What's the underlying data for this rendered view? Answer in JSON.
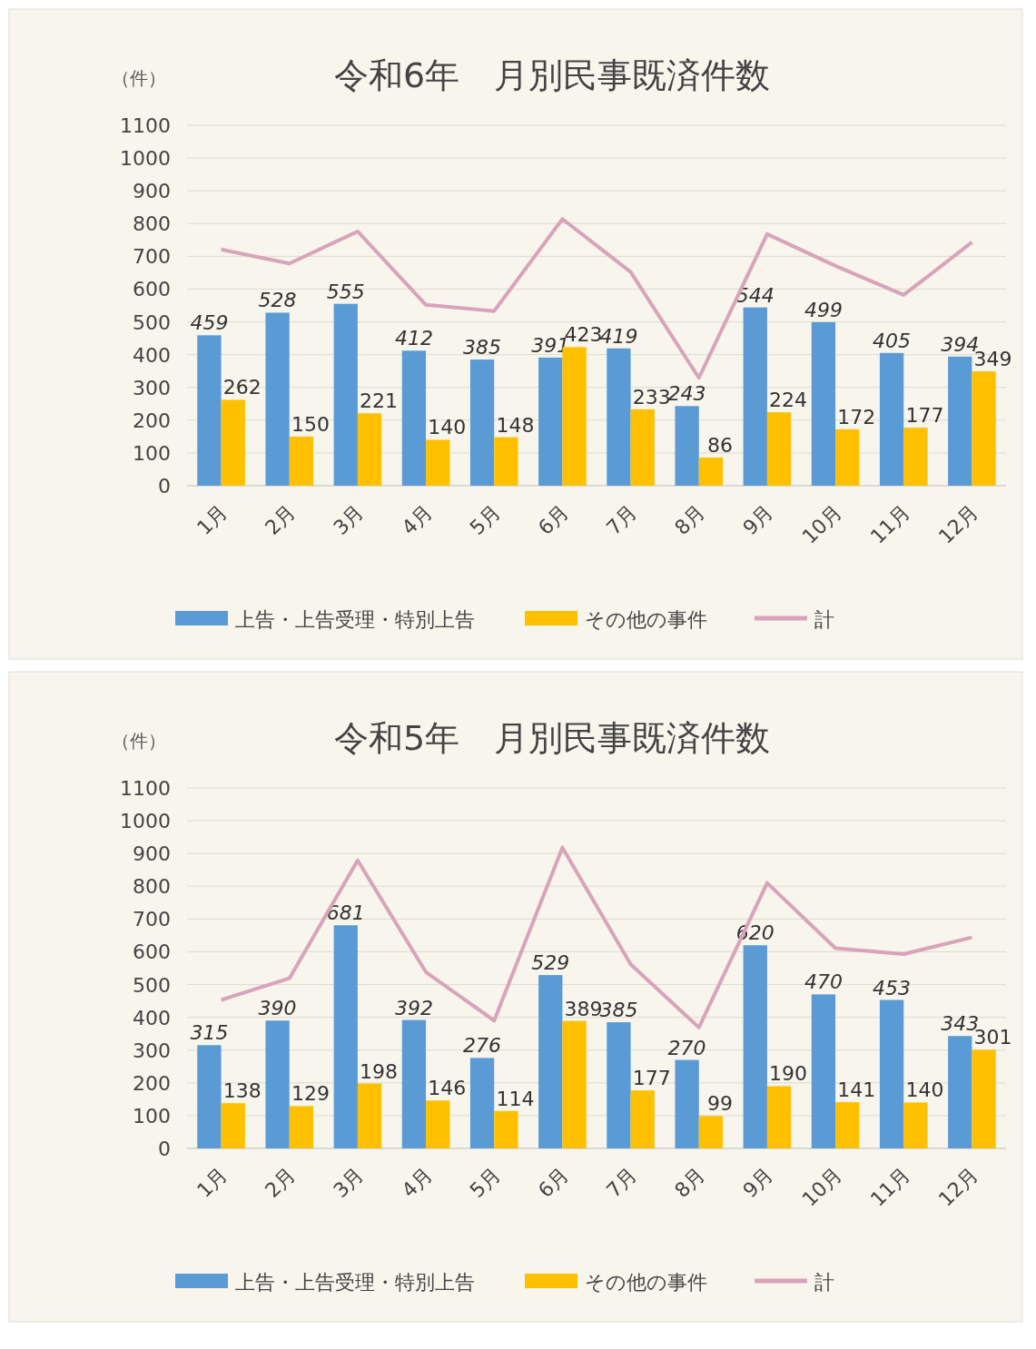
{
  "chart_data": [
    {
      "type": "bar",
      "title": "令和6年　月別民事既済件数",
      "ylabel": "（件）",
      "categories": [
        "1月",
        "2月",
        "3月",
        "4月",
        "5月",
        "6月",
        "7月",
        "8月",
        "9月",
        "10月",
        "11月",
        "12月"
      ],
      "ylim": [
        0,
        1100
      ],
      "yticks": [
        0,
        100,
        200,
        300,
        400,
        500,
        600,
        700,
        800,
        900,
        1000,
        1100
      ],
      "grid": "y",
      "legend": "bottom",
      "series": [
        {
          "name": "上告・上告受理・特別上告",
          "color": "#5b9bd5",
          "values": [
            459,
            528,
            555,
            412,
            385,
            391,
            419,
            243,
            544,
            499,
            405,
            394
          ],
          "value_labels": [
            "459",
            "528",
            "555",
            "412",
            "385",
            "391",
            "419",
            "243",
            "544",
            "499",
            "405",
            "394"
          ]
        },
        {
          "name": "その他の事件",
          "color": "#ffc000",
          "values": [
            262,
            150,
            221,
            140,
            148,
            423,
            233,
            86,
            224,
            172,
            177,
            349
          ],
          "value_labels": [
            "262",
            "150",
            "221",
            "140",
            "148",
            "423",
            "233",
            "86",
            "224",
            "172",
            "177",
            "349"
          ]
        },
        {
          "name": "計",
          "type": "line",
          "color": "#d9a3b9",
          "values": [
            721,
            678,
            776,
            552,
            533,
            814,
            652,
            329,
            768,
            671,
            582,
            743
          ]
        }
      ]
    },
    {
      "type": "bar",
      "title": "令和5年　月別民事既済件数",
      "ylabel": "（件）",
      "categories": [
        "1月",
        "2月",
        "3月",
        "4月",
        "5月",
        "6月",
        "7月",
        "8月",
        "9月",
        "10月",
        "11月",
        "12月"
      ],
      "ylim": [
        0,
        1100
      ],
      "yticks": [
        0,
        100,
        200,
        300,
        400,
        500,
        600,
        700,
        800,
        900,
        1000,
        1100
      ],
      "grid": "y",
      "legend": "bottom",
      "series": [
        {
          "name": "上告・上告受理・特別上告",
          "color": "#5b9bd5",
          "values": [
            315,
            390,
            681,
            392,
            276,
            529,
            385,
            270,
            620,
            470,
            453,
            343
          ],
          "value_labels": [
            "315",
            "390",
            "681",
            "392",
            "276",
            "529",
            "385",
            "270",
            "620",
            "470",
            "453",
            "343"
          ]
        },
        {
          "name": "その他の事件",
          "color": "#ffc000",
          "values": [
            138,
            129,
            198,
            146,
            114,
            389,
            177,
            99,
            190,
            141,
            140,
            301
          ],
          "value_labels": [
            "138",
            "129",
            "198",
            "146",
            "114",
            "389",
            "177",
            "99",
            "190",
            "141",
            "140",
            "301"
          ]
        },
        {
          "name": "計",
          "type": "line",
          "color": "#d9a3b9",
          "values": [
            453,
            519,
            879,
            538,
            390,
            918,
            562,
            369,
            810,
            611,
            593,
            644
          ]
        }
      ]
    }
  ]
}
